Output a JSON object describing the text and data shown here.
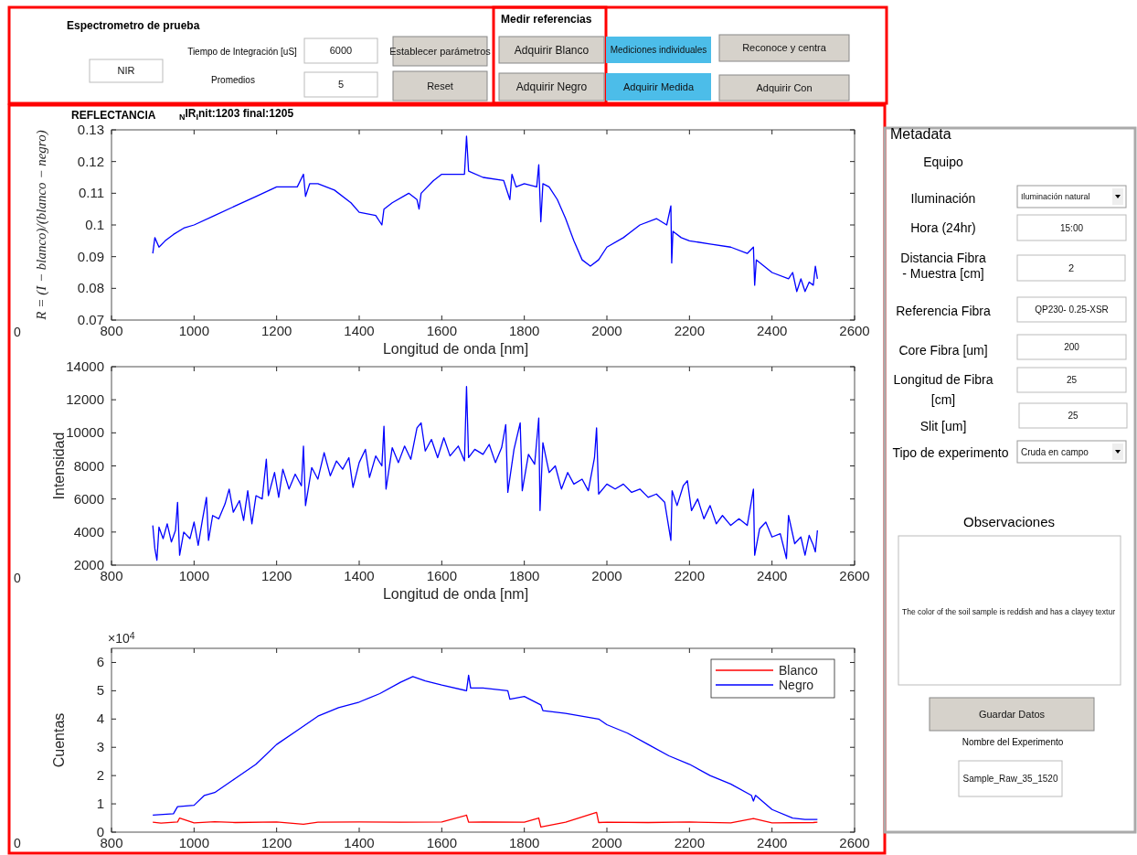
{
  "chart_data": [
    {
      "type": "other",
      "title": "Espectrometro de prueba",
      "annotations": [
        "NIR",
        "Tiempo de Integración [uS]",
        "6000",
        "Establecer parámetros",
        "Promedios",
        "5",
        "Reset"
      ]
    },
    {
      "type": "other",
      "title": "Medir referencias",
      "annotations": [
        "Adquirir Blanco",
        "Adquirir Negro"
      ]
    },
    {
      "type": "other",
      "annotations": [
        "Mediciones individuales",
        "Reconoce y centra",
        "Adquirir Medida",
        "Adquirir Con"
      ]
    },
    {
      "type": "line",
      "title": "REFLECTANCIA",
      "subtitle": "$_{N}$IR$_{I}$nit:1203 final:1205",
      "xlabel": "Longitud de onda [nm]",
      "ylabel": "R = (I − blanco)/(blanco − negro)",
      "annotations": [
        "0"
      ],
      "xlim": [
        800,
        2600
      ],
      "xticks": [
        800,
        1000,
        1200,
        1400,
        1600,
        1800,
        2000,
        2200,
        2400,
        2600
      ],
      "ylim": [
        0.07,
        0.13
      ],
      "yticks": [
        0.07,
        0.08,
        0.09,
        {
          "value": 0.1,
          "label": "0.1"
        },
        0.11,
        0.12,
        0.13
      ],
      "legend": false,
      "series": [
        {
          "color": "#0000ff",
          "x": [
            900,
            905,
            915,
            930,
            950,
            975,
            1000,
            1050,
            1100,
            1150,
            1200,
            1250,
            1265,
            1270,
            1280,
            1300,
            1340,
            1380,
            1400,
            1440,
            1455,
            1460,
            1480,
            1520,
            1540,
            1545,
            1550,
            1580,
            1600,
            1640,
            1655,
            1660,
            1665,
            1700,
            1750,
            1765,
            1770,
            1780,
            1800,
            1830,
            1835,
            1840,
            1845,
            1860,
            1880,
            1900,
            1920,
            1940,
            1960,
            1980,
            2000,
            2040,
            2080,
            2120,
            2145,
            2155,
            2157,
            2160,
            2180,
            2200,
            2250,
            2300,
            2340,
            2355,
            2358,
            2362,
            2400,
            2440,
            2450,
            2460,
            2470,
            2480,
            2490,
            2500,
            2505,
            2510
          ],
          "values": [
            0.091,
            0.096,
            0.093,
            0.095,
            0.097,
            0.099,
            0.1,
            0.103,
            0.106,
            0.109,
            0.112,
            0.112,
            0.116,
            0.109,
            0.113,
            0.113,
            0.111,
            0.107,
            0.104,
            0.103,
            0.1,
            0.105,
            0.107,
            0.11,
            0.108,
            0.105,
            0.11,
            0.114,
            0.116,
            0.116,
            0.116,
            0.128,
            0.117,
            0.115,
            0.114,
            0.108,
            0.116,
            0.112,
            0.113,
            0.112,
            0.119,
            0.101,
            0.113,
            0.112,
            0.108,
            0.102,
            0.095,
            0.089,
            0.087,
            0.089,
            0.093,
            0.096,
            0.1,
            0.102,
            0.1,
            0.106,
            0.088,
            0.098,
            0.096,
            0.095,
            0.094,
            0.093,
            0.091,
            0.093,
            0.081,
            0.089,
            0.085,
            0.083,
            0.085,
            0.079,
            0.083,
            0.079,
            0.082,
            0.081,
            0.087,
            0.083
          ]
        }
      ]
    },
    {
      "type": "line",
      "xlabel": "Longitud de onda [nm]",
      "ylabel": "Intensidad",
      "annotations": [
        "0"
      ],
      "xlim": [
        800,
        2600
      ],
      "xticks": [
        800,
        1000,
        1200,
        1400,
        1600,
        1800,
        2000,
        2200,
        2400,
        2600
      ],
      "ylim": [
        2000,
        14000
      ],
      "yticks": [
        2000,
        4000,
        6000,
        8000,
        10000,
        12000,
        14000
      ],
      "legend": false,
      "series": [
        {
          "color": "#0000ff",
          "x": [
            900,
            905,
            910,
            915,
            925,
            935,
            945,
            955,
            960,
            965,
            975,
            990,
            1000,
            1010,
            1020,
            1030,
            1035,
            1045,
            1060,
            1075,
            1085,
            1095,
            1110,
            1120,
            1130,
            1140,
            1150,
            1165,
            1175,
            1180,
            1195,
            1205,
            1215,
            1230,
            1245,
            1260,
            1265,
            1270,
            1285,
            1300,
            1315,
            1330,
            1345,
            1360,
            1375,
            1385,
            1400,
            1415,
            1425,
            1440,
            1455,
            1460,
            1465,
            1480,
            1495,
            1510,
            1525,
            1540,
            1550,
            1560,
            1575,
            1590,
            1605,
            1620,
            1640,
            1655,
            1660,
            1665,
            1680,
            1700,
            1715,
            1730,
            1745,
            1755,
            1760,
            1775,
            1790,
            1795,
            1810,
            1825,
            1835,
            1838,
            1845,
            1860,
            1875,
            1890,
            1905,
            1920,
            1940,
            1955,
            1970,
            1975,
            1980,
            2000,
            2020,
            2040,
            2060,
            2080,
            2100,
            2120,
            2140,
            2155,
            2158,
            2170,
            2185,
            2195,
            2205,
            2220,
            2235,
            2250,
            2265,
            2280,
            2300,
            2320,
            2340,
            2355,
            2358,
            2370,
            2385,
            2400,
            2420,
            2435,
            2440,
            2455,
            2470,
            2480,
            2490,
            2500,
            2505,
            2510
          ],
          "values": [
            4400,
            3000,
            2300,
            4300,
            3600,
            4500,
            3400,
            4100,
            5800,
            2600,
            4000,
            3600,
            4600,
            3200,
            4700,
            6100,
            3500,
            5000,
            4800,
            5700,
            6600,
            5200,
            5900,
            4700,
            6500,
            4500,
            6200,
            6000,
            8400,
            6200,
            7600,
            6100,
            7800,
            6600,
            7500,
            6800,
            9200,
            5600,
            7900,
            7200,
            8800,
            7400,
            8300,
            7800,
            8500,
            6700,
            8200,
            9000,
            7300,
            8600,
            8000,
            10400,
            6600,
            9100,
            8200,
            9200,
            8400,
            10300,
            10600,
            8900,
            9600,
            8500,
            9700,
            8600,
            9200,
            8300,
            12800,
            8500,
            9000,
            8700,
            9300,
            8200,
            9100,
            10500,
            6400,
            9000,
            10600,
            6500,
            8700,
            8100,
            10900,
            5300,
            9400,
            7600,
            8000,
            6600,
            7600,
            6900,
            7200,
            6500,
            8500,
            10300,
            6300,
            6900,
            6600,
            6900,
            6400,
            6600,
            6100,
            6300,
            5800,
            3500,
            6500,
            5600,
            6800,
            7100,
            5300,
            6000,
            4800,
            5600,
            4500,
            5000,
            4400,
            4800,
            4400,
            6600,
            2600,
            4200,
            4600,
            3700,
            3900,
            2400,
            5000,
            3300,
            3700,
            2600,
            3800,
            3200,
            2800,
            4100
          ]
        }
      ]
    },
    {
      "type": "line",
      "ylabel": "Cuentas",
      "annotations": [
        "×10$^{4}$",
        "0"
      ],
      "xlim": [
        800,
        2600
      ],
      "xticks": [
        800,
        1000,
        1200,
        1400,
        1600,
        1800,
        2000,
        2200,
        2400,
        2600
      ],
      "ylim": [
        0,
        6.5
      ],
      "yticks": [
        0,
        1,
        2,
        3,
        4,
        5,
        6
      ],
      "legend": "top right",
      "series": [
        {
          "name": "Blanco",
          "color": "#ff0000",
          "x": [
            900,
            920,
            960,
            965,
            1000,
            1050,
            1100,
            1200,
            1265,
            1300,
            1400,
            1500,
            1600,
            1660,
            1665,
            1700,
            1800,
            1835,
            1840,
            1900,
            1975,
            1980,
            2000,
            2100,
            2200,
            2300,
            2355,
            2400,
            2500,
            2510
          ],
          "values": [
            0.35,
            0.32,
            0.36,
            0.5,
            0.33,
            0.37,
            0.34,
            0.36,
            0.28,
            0.35,
            0.36,
            0.35,
            0.36,
            0.6,
            0.35,
            0.36,
            0.35,
            0.5,
            0.18,
            0.35,
            0.7,
            0.34,
            0.35,
            0.34,
            0.36,
            0.33,
            0.48,
            0.33,
            0.34,
            0.35
          ]
        },
        {
          "name": "Negro",
          "color": "#0000ff",
          "x": [
            900,
            950,
            960,
            1000,
            1025,
            1050,
            1100,
            1150,
            1200,
            1250,
            1300,
            1350,
            1400,
            1450,
            1500,
            1530,
            1560,
            1600,
            1660,
            1665,
            1670,
            1700,
            1760,
            1765,
            1800,
            1840,
            1845,
            1900,
            1980,
            2000,
            2050,
            2100,
            2150,
            2200,
            2250,
            2300,
            2350,
            2355,
            2360,
            2400,
            2450,
            2480,
            2510
          ],
          "values": [
            0.6,
            0.65,
            0.9,
            0.95,
            1.3,
            1.4,
            1.9,
            2.4,
            3.1,
            3.6,
            4.1,
            4.4,
            4.6,
            4.9,
            5.3,
            5.5,
            5.35,
            5.2,
            5,
            5.55,
            5.1,
            5.1,
            5,
            4.7,
            4.8,
            4.5,
            4.3,
            4.2,
            4,
            3.8,
            3.5,
            3.1,
            2.7,
            2.4,
            2,
            1.7,
            1.3,
            1.1,
            1.3,
            0.8,
            0.5,
            0.45,
            0.45
          ]
        }
      ]
    },
    {
      "type": "other",
      "title": "Metadata",
      "annotations": [
        "Equipo",
        "Iluminación",
        "Iluminación natural",
        "Hora (24hr)",
        "15:00",
        "Distancia Fibra",
        "- Muestra [cm]",
        "2",
        "Referencia Fibra",
        "QP230- 0.25-XSR",
        "Core  Fibra [um]",
        "200",
        "Longitud de Fibra",
        "[cm]",
        "25",
        "Slit [um]",
        "25",
        "Tipo de experimento",
        "Cruda en campo",
        "Observaciones",
        "The color of the soil sample is reddish and has a clayey textur",
        "Guardar Datos",
        "Nombre del Experimento",
        "Sample_Raw_35_1520"
      ]
    }
  ]
}
